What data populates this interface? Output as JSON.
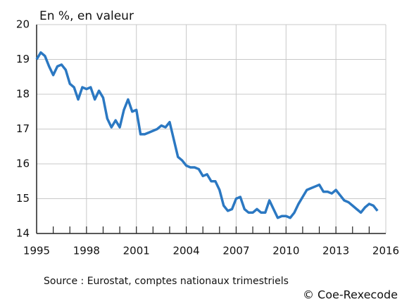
{
  "chart_data": {
    "type": "line",
    "title": "En %, en valeur",
    "source": "Source : Eurostat, comptes nationaux trimestriels",
    "copyright": "© Coe-Rexecode",
    "x": [
      1995.0,
      1995.25,
      1995.5,
      1995.75,
      1996.0,
      1996.25,
      1996.5,
      1996.75,
      1997.0,
      1997.25,
      1997.5,
      1997.75,
      1998.0,
      1998.25,
      1998.5,
      1998.75,
      1999.0,
      1999.25,
      1999.5,
      1999.75,
      2000.0,
      2000.25,
      2000.5,
      2000.75,
      2001.0,
      2001.25,
      2001.5,
      2001.75,
      2002.0,
      2002.25,
      2002.5,
      2002.75,
      2003.0,
      2003.25,
      2003.5,
      2003.75,
      2004.0,
      2004.25,
      2004.5,
      2004.75,
      2005.0,
      2005.25,
      2005.5,
      2005.75,
      2006.0,
      2006.25,
      2006.5,
      2006.75,
      2007.0,
      2007.25,
      2007.5,
      2007.75,
      2008.0,
      2008.25,
      2008.5,
      2008.75,
      2009.0,
      2009.25,
      2009.5,
      2009.75,
      2010.0,
      2010.25,
      2010.5,
      2010.75,
      2011.0,
      2011.25,
      2011.5,
      2011.75,
      2012.0,
      2012.25,
      2012.5,
      2012.75,
      2013.0,
      2013.25,
      2013.5,
      2013.75,
      2014.0,
      2014.25,
      2014.5,
      2014.75,
      2015.0,
      2015.25,
      2015.5
    ],
    "series": [
      {
        "color": "#2b78c2",
        "values": [
          19.0,
          19.2,
          19.1,
          18.8,
          18.55,
          18.8,
          18.85,
          18.7,
          18.3,
          18.2,
          17.85,
          18.2,
          18.15,
          18.2,
          17.85,
          18.1,
          17.9,
          17.3,
          17.05,
          17.25,
          17.05,
          17.55,
          17.85,
          17.5,
          17.55,
          16.85,
          16.85,
          16.9,
          16.95,
          17.0,
          17.1,
          17.05,
          17.2,
          16.7,
          16.2,
          16.1,
          15.95,
          15.9,
          15.9,
          15.85,
          15.65,
          15.7,
          15.5,
          15.5,
          15.25,
          14.8,
          14.65,
          14.7,
          15.0,
          15.05,
          14.7,
          14.6,
          14.6,
          14.7,
          14.6,
          14.6,
          14.95,
          14.7,
          14.45,
          14.5,
          14.5,
          14.45,
          14.6,
          14.85,
          15.05,
          15.25,
          15.3,
          15.35,
          15.4,
          15.2,
          15.2,
          15.15,
          15.25,
          15.1,
          14.95,
          14.9,
          14.8,
          14.7,
          14.6,
          14.75,
          14.85,
          14.8,
          14.65
        ]
      }
    ],
    "xlim": [
      1995,
      2016
    ],
    "xticks": [
      1995,
      1998,
      2001,
      2004,
      2007,
      2010,
      2013,
      2016
    ],
    "xminorticks": [
      1996,
      1997,
      1998,
      1999,
      2000,
      2001,
      2002,
      2003,
      2004,
      2005,
      2006,
      2007,
      2008,
      2009,
      2010,
      2011,
      2012,
      2013,
      2014,
      2015
    ],
    "ylim": [
      14,
      20
    ],
    "yticks": [
      14,
      15,
      16,
      17,
      18,
      19,
      20
    ],
    "grid": true
  }
}
